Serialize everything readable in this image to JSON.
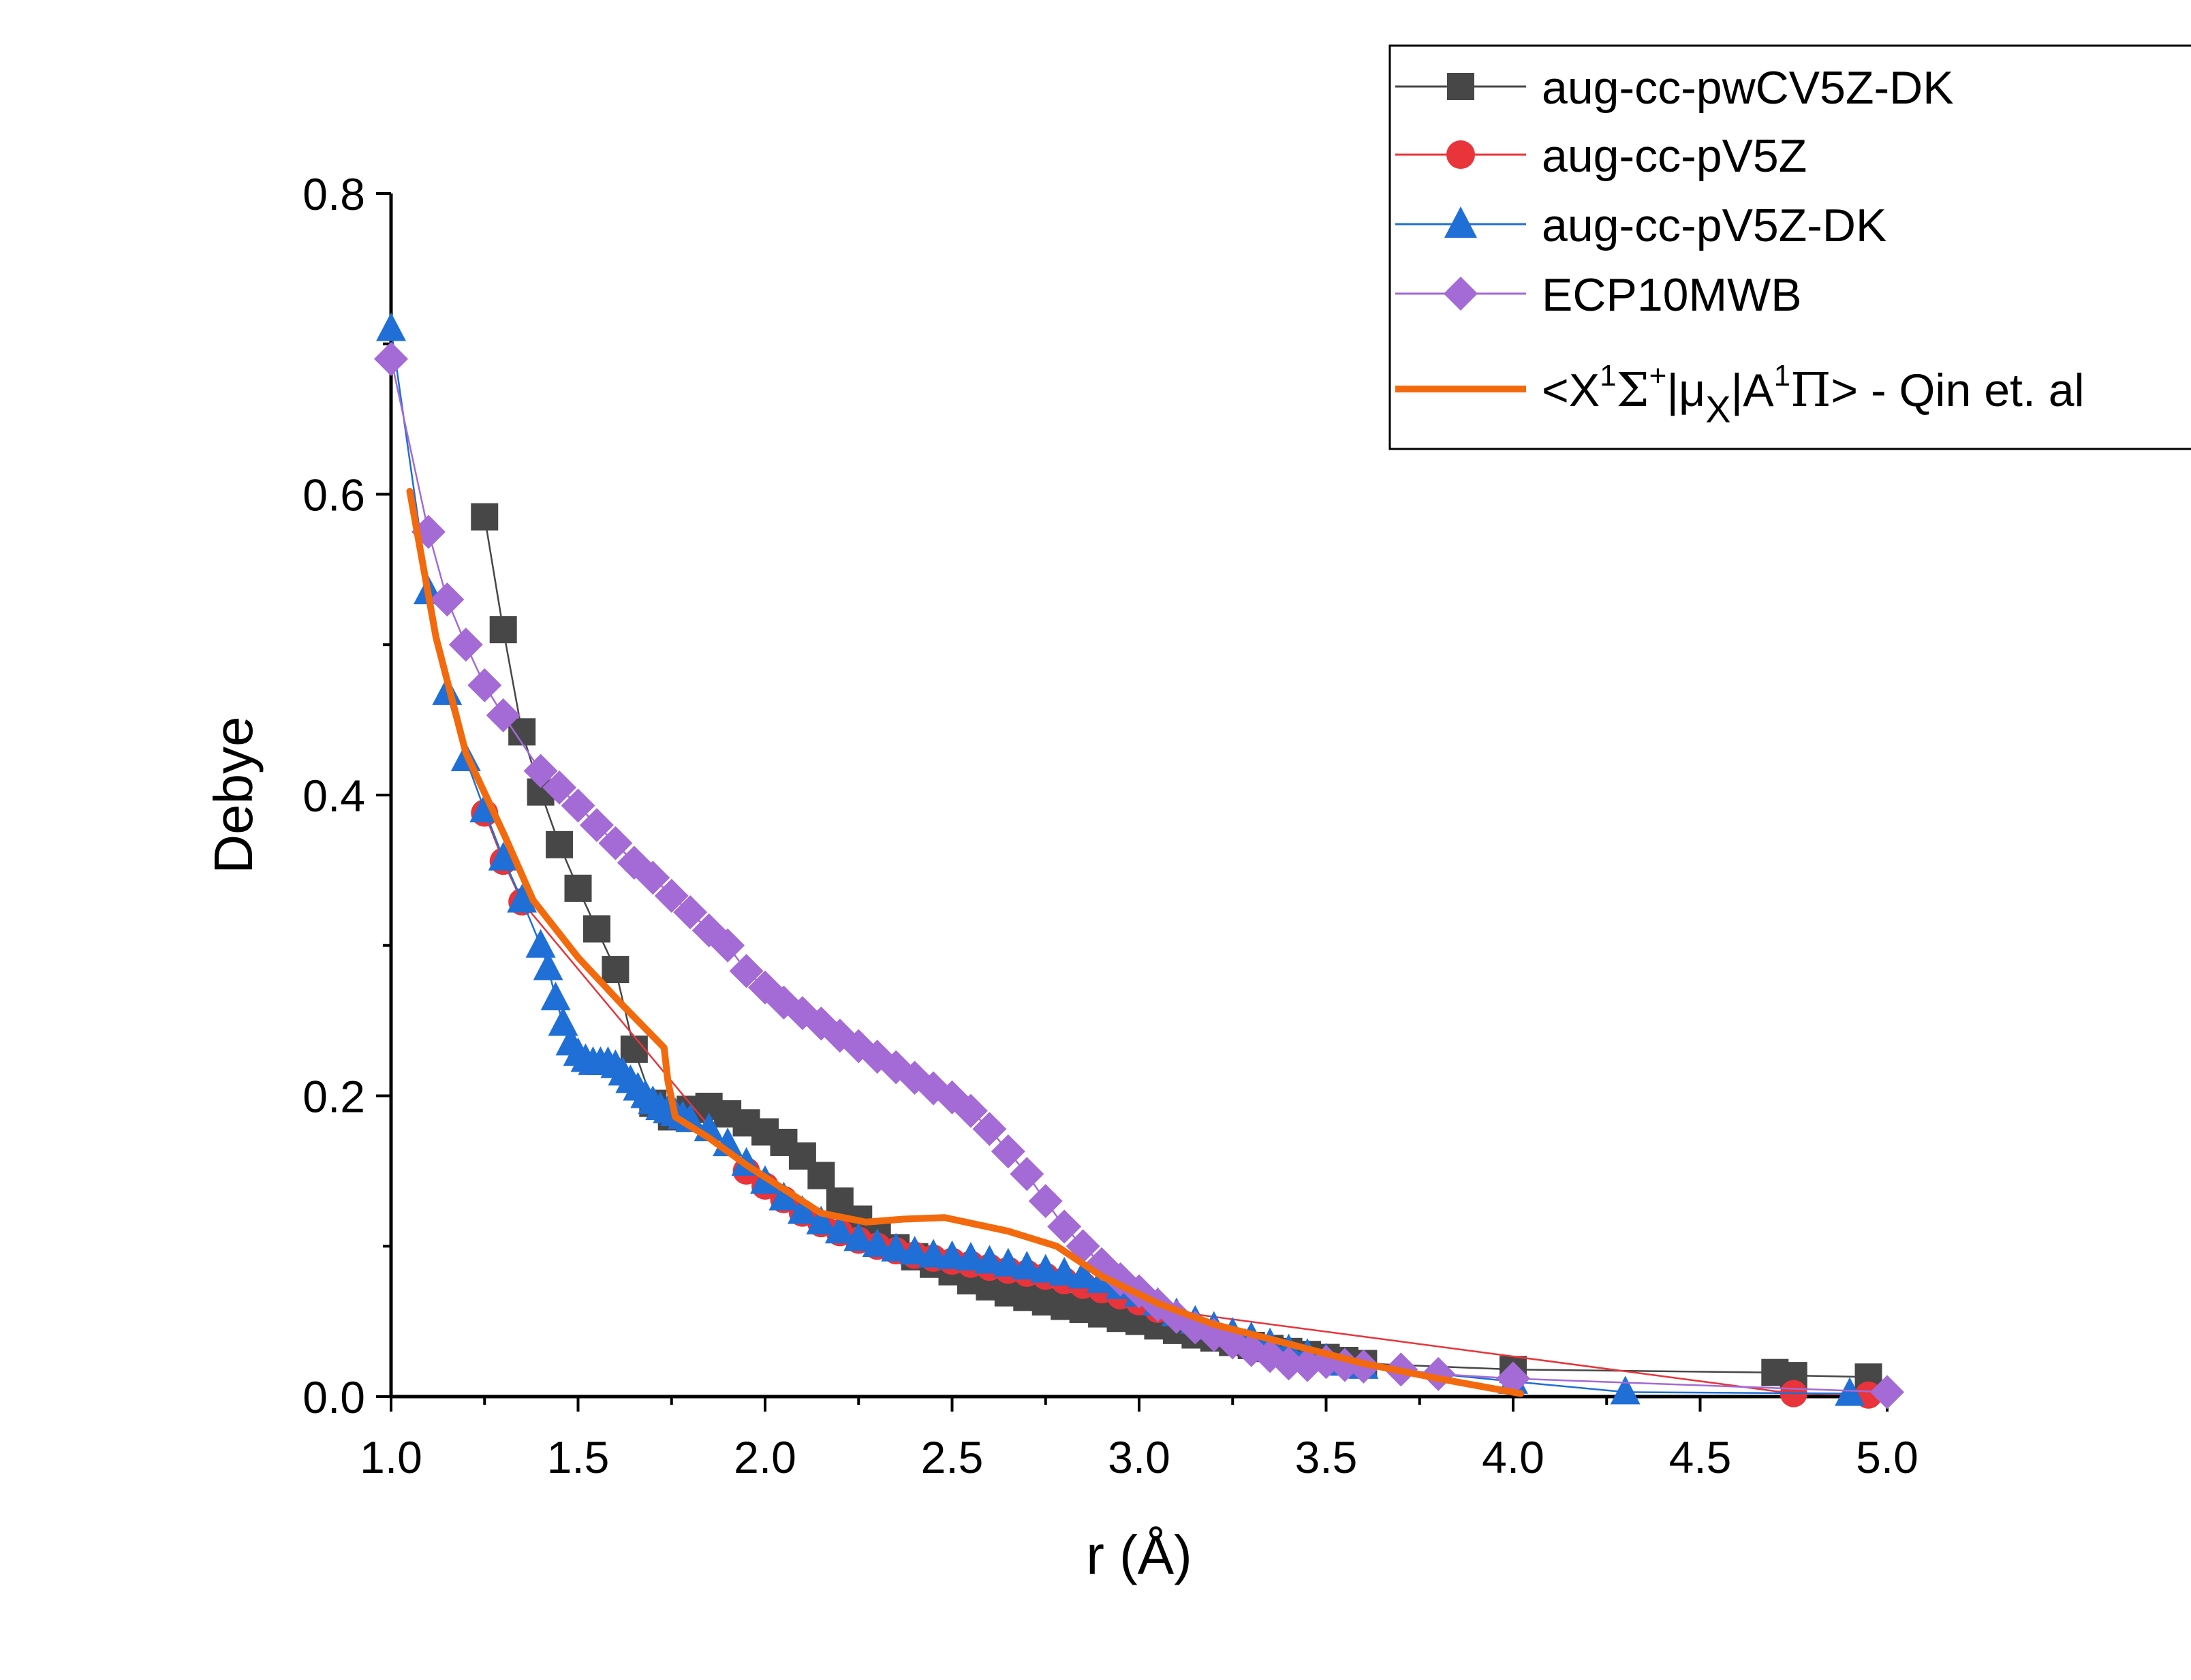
{
  "chart_data": {
    "type": "line",
    "title": "",
    "xlabel": "r (Å)",
    "ylabel": "Debye",
    "xlim": [
      1.0,
      5.0
    ],
    "ylim": [
      0.0,
      0.8
    ],
    "xticks": [
      "1.0",
      "1.5",
      "2.0",
      "2.5",
      "3.0",
      "3.5",
      "4.0",
      "4.5",
      "5.0"
    ],
    "yticks": [
      "0.0",
      "0.2",
      "0.4",
      "0.6",
      "0.8"
    ],
    "grid": false,
    "legend_position": "top-right",
    "series": [
      {
        "name": "aug-cc-pwCV5Z-DK",
        "color": "#474747",
        "marker": "square",
        "x": [
          1.25,
          1.3,
          1.35,
          1.4,
          1.45,
          1.5,
          1.55,
          1.6,
          1.65,
          1.7,
          1.75,
          1.8,
          1.85,
          1.9,
          1.95,
          2.0,
          2.05,
          2.1,
          2.15,
          2.2,
          2.25,
          2.3,
          2.35,
          2.4,
          2.45,
          2.5,
          2.55,
          2.6,
          2.65,
          2.7,
          2.75,
          2.8,
          2.85,
          2.9,
          2.95,
          3.0,
          3.05,
          3.1,
          3.15,
          3.2,
          3.25,
          3.3,
          3.35,
          3.4,
          3.45,
          3.5,
          3.55,
          3.6,
          4.0,
          4.7,
          4.75,
          4.95
        ],
        "y": [
          0.585,
          0.51,
          0.442,
          0.402,
          0.367,
          0.338,
          0.311,
          0.284,
          0.231,
          0.195,
          0.186,
          0.191,
          0.193,
          0.188,
          0.182,
          0.176,
          0.169,
          0.16,
          0.147,
          0.13,
          0.118,
          0.107,
          0.099,
          0.093,
          0.088,
          0.083,
          0.077,
          0.073,
          0.069,
          0.066,
          0.063,
          0.06,
          0.058,
          0.055,
          0.052,
          0.05,
          0.047,
          0.044,
          0.041,
          0.039,
          0.036,
          0.034,
          0.032,
          0.03,
          0.028,
          0.026,
          0.024,
          0.022,
          0.018,
          0.016,
          0.014,
          0.013
        ]
      },
      {
        "name": "aug-cc-pV5Z",
        "color": "#e8343a",
        "marker": "circle",
        "x": [
          1.25,
          1.3,
          1.35,
          1.95,
          2.0,
          2.05,
          2.1,
          2.15,
          2.2,
          2.25,
          2.3,
          2.35,
          2.4,
          2.45,
          2.5,
          2.55,
          2.6,
          2.65,
          2.7,
          2.75,
          2.8,
          2.85,
          2.9,
          2.95,
          3.0,
          3.05,
          4.75,
          4.95
        ],
        "y": [
          0.388,
          0.356,
          0.329,
          0.15,
          0.14,
          0.131,
          0.122,
          0.115,
          0.109,
          0.104,
          0.1,
          0.097,
          0.094,
          0.092,
          0.09,
          0.088,
          0.086,
          0.084,
          0.082,
          0.08,
          0.077,
          0.074,
          0.071,
          0.067,
          0.063,
          0.058,
          0.002,
          0.001
        ]
      },
      {
        "name": "aug-cc-pV5Z-DK",
        "color": "#1f6fd6",
        "marker": "triangle",
        "x": [
          1.0,
          1.1,
          1.15,
          1.2,
          1.25,
          1.3,
          1.35,
          1.4,
          1.42,
          1.44,
          1.46,
          1.48,
          1.5,
          1.52,
          1.54,
          1.56,
          1.58,
          1.6,
          1.62,
          1.64,
          1.66,
          1.68,
          1.7,
          1.72,
          1.74,
          1.76,
          1.78,
          1.8,
          1.85,
          1.9,
          1.95,
          2.0,
          2.05,
          2.1,
          2.15,
          2.2,
          2.25,
          2.3,
          2.35,
          2.4,
          2.45,
          2.5,
          2.55,
          2.6,
          2.65,
          2.7,
          2.75,
          2.8,
          2.85,
          2.9,
          2.95,
          3.0,
          3.05,
          3.1,
          3.15,
          3.2,
          3.25,
          3.3,
          3.35,
          3.4,
          3.45,
          3.5,
          3.55,
          3.6,
          4.0,
          4.3,
          4.9
        ],
        "y": [
          0.71,
          0.535,
          0.468,
          0.424,
          0.39,
          0.358,
          0.33,
          0.3,
          0.285,
          0.265,
          0.248,
          0.235,
          0.228,
          0.224,
          0.222,
          0.222,
          0.222,
          0.22,
          0.215,
          0.21,
          0.205,
          0.2,
          0.196,
          0.192,
          0.19,
          0.188,
          0.186,
          0.184,
          0.178,
          0.168,
          0.155,
          0.143,
          0.132,
          0.123,
          0.116,
          0.11,
          0.105,
          0.101,
          0.098,
          0.096,
          0.094,
          0.093,
          0.092,
          0.09,
          0.088,
          0.086,
          0.084,
          0.082,
          0.08,
          0.077,
          0.073,
          0.068,
          0.062,
          0.055,
          0.05,
          0.046,
          0.042,
          0.039,
          0.035,
          0.031,
          0.028,
          0.025,
          0.022,
          0.02,
          0.01,
          0.003,
          0.002
        ]
      },
      {
        "name": "ECP10MWB",
        "color": "#a46ad6",
        "marker": "diamond",
        "x": [
          1.0,
          1.1,
          1.15,
          1.2,
          1.25,
          1.3,
          1.4,
          1.45,
          1.5,
          1.55,
          1.6,
          1.65,
          1.7,
          1.75,
          1.8,
          1.85,
          1.9,
          1.95,
          2.0,
          2.05,
          2.1,
          2.15,
          2.2,
          2.25,
          2.3,
          2.35,
          2.4,
          2.45,
          2.5,
          2.55,
          2.6,
          2.65,
          2.7,
          2.75,
          2.8,
          2.85,
          2.9,
          2.95,
          3.0,
          3.05,
          3.1,
          3.15,
          3.2,
          3.25,
          3.3,
          3.35,
          3.4,
          3.45,
          3.5,
          3.55,
          3.6,
          3.7,
          3.8,
          4.0,
          5.0
        ],
        "y": [
          0.69,
          0.575,
          0.53,
          0.5,
          0.473,
          0.453,
          0.416,
          0.405,
          0.393,
          0.38,
          0.368,
          0.355,
          0.345,
          0.333,
          0.322,
          0.31,
          0.3,
          0.283,
          0.272,
          0.262,
          0.255,
          0.248,
          0.24,
          0.233,
          0.226,
          0.219,
          0.212,
          0.205,
          0.199,
          0.19,
          0.178,
          0.163,
          0.148,
          0.13,
          0.113,
          0.1,
          0.088,
          0.078,
          0.07,
          0.061,
          0.053,
          0.046,
          0.041,
          0.036,
          0.031,
          0.027,
          0.022,
          0.021,
          0.023,
          0.021,
          0.02,
          0.018,
          0.015,
          0.012,
          0.003
        ]
      },
      {
        "name": "<X¹Σ⁺|μX|A¹Π> - Qin et. al",
        "color": "#f26a0d",
        "marker": "none",
        "x": [
          1.05,
          1.12,
          1.2,
          1.3,
          1.38,
          1.5,
          1.62,
          1.73,
          1.74,
          1.76,
          1.85,
          1.95,
          2.05,
          2.15,
          2.27,
          2.37,
          2.48,
          2.65,
          2.78,
          2.9,
          3.05,
          3.2,
          3.4,
          3.6,
          3.8,
          4.02
        ],
        "y": [
          0.602,
          0.505,
          0.428,
          0.375,
          0.33,
          0.292,
          0.26,
          0.232,
          0.21,
          0.186,
          0.172,
          0.154,
          0.138,
          0.122,
          0.116,
          0.118,
          0.119,
          0.11,
          0.1,
          0.08,
          0.062,
          0.048,
          0.035,
          0.022,
          0.012,
          0.002
        ]
      }
    ]
  },
  "legend": {
    "items": [
      {
        "label": "aug-cc-pwCV5Z-DK"
      },
      {
        "label": "aug-cc-pV5Z"
      },
      {
        "label": "aug-cc-pV5Z-DK"
      },
      {
        "label": "ECP10MWB"
      },
      {
        "label_pre": "<X",
        "sup1": "1",
        "sigma": "Σ",
        "sup2": "+",
        "mid": "|μ",
        "sub": "X",
        "mid2": "|A",
        "sup3": "1",
        "pi": "Π",
        "post": "> - Qin et. al"
      }
    ]
  }
}
